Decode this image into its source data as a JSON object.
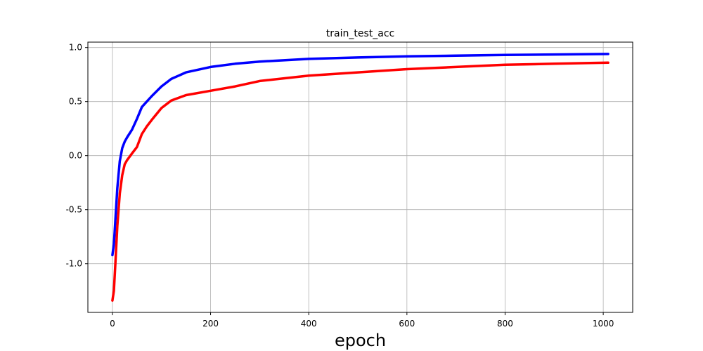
{
  "chart_data": {
    "type": "line",
    "title": "train_test_acc",
    "xlabel": "epoch",
    "ylabel": "",
    "xlim": [
      -50,
      1060
    ],
    "ylim": [
      -1.45,
      1.05
    ],
    "grid": true,
    "x_ticks": [
      0,
      200,
      400,
      600,
      800,
      1000
    ],
    "x_tick_labels": [
      "0",
      "200",
      "400",
      "600",
      "800",
      "1000"
    ],
    "y_ticks": [
      -1.0,
      -0.5,
      0.0,
      0.5,
      1.0
    ],
    "y_tick_labels": [
      "-1.0",
      "-0.5",
      "0.0",
      "0.5",
      "1.0"
    ],
    "series": [
      {
        "color": "#0000ff",
        "x": [
          0,
          3,
          6,
          10,
          15,
          20,
          25,
          30,
          40,
          50,
          60,
          70,
          80,
          100,
          120,
          150,
          200,
          250,
          300,
          400,
          500,
          600,
          700,
          800,
          900,
          1010
        ],
        "y": [
          -0.92,
          -0.82,
          -0.6,
          -0.3,
          -0.05,
          0.07,
          0.13,
          0.17,
          0.24,
          0.34,
          0.45,
          0.5,
          0.55,
          0.64,
          0.71,
          0.77,
          0.82,
          0.85,
          0.87,
          0.895,
          0.908,
          0.918,
          0.925,
          0.931,
          0.936,
          0.94
        ]
      },
      {
        "color": "#ff0000",
        "x": [
          0,
          3,
          6,
          10,
          15,
          20,
          25,
          30,
          40,
          50,
          60,
          70,
          80,
          100,
          120,
          150,
          200,
          250,
          300,
          400,
          500,
          600,
          700,
          800,
          900,
          1010
        ],
        "y": [
          -1.34,
          -1.25,
          -1.0,
          -0.65,
          -0.35,
          -0.18,
          -0.08,
          -0.04,
          0.02,
          0.08,
          0.2,
          0.27,
          0.33,
          0.44,
          0.51,
          0.56,
          0.6,
          0.64,
          0.69,
          0.74,
          0.77,
          0.8,
          0.82,
          0.84,
          0.85,
          0.86
        ]
      }
    ]
  }
}
